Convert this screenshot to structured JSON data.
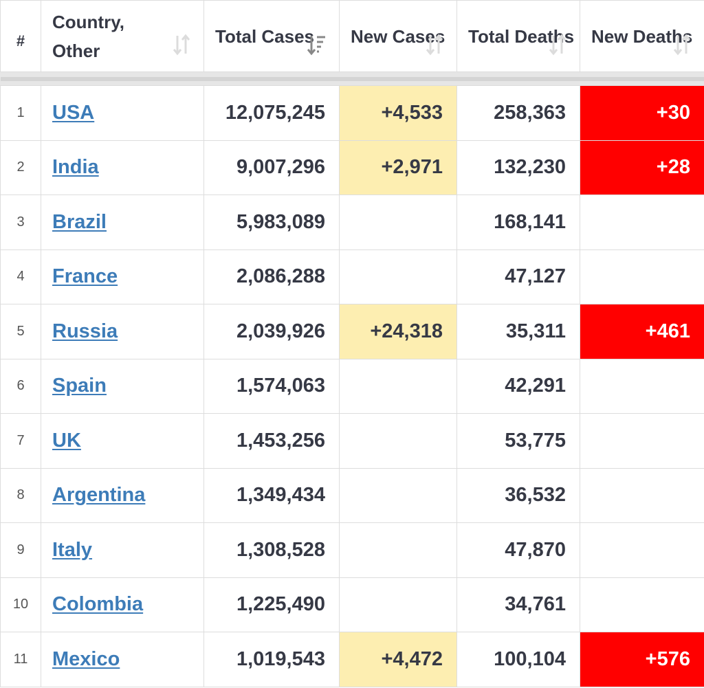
{
  "colors": {
    "new_cases_highlight": "#fdeeb1",
    "new_deaths_highlight": "#ff0000",
    "link": "#3d7cb8",
    "text": "#363945"
  },
  "header": {
    "rank": "#",
    "country": "Country, Other",
    "total_cases": "Total Cases",
    "new_cases": "New Cases",
    "total_deaths": "Total Deaths",
    "new_deaths": "New Deaths",
    "sort_icons": [
      "sort-both-icon",
      "sort-desc-icon",
      "sort-both-icon",
      "sort-both-icon",
      "sort-both-icon"
    ]
  },
  "rows": [
    {
      "rank": "1",
      "country": "USA",
      "total_cases": "12,075,245",
      "new_cases": "+4,533",
      "total_deaths": "258,363",
      "new_deaths": "+30"
    },
    {
      "rank": "2",
      "country": "India",
      "total_cases": "9,007,296",
      "new_cases": "+2,971",
      "total_deaths": "132,230",
      "new_deaths": "+28"
    },
    {
      "rank": "3",
      "country": "Brazil",
      "total_cases": "5,983,089",
      "new_cases": "",
      "total_deaths": "168,141",
      "new_deaths": ""
    },
    {
      "rank": "4",
      "country": "France",
      "total_cases": "2,086,288",
      "new_cases": "",
      "total_deaths": "47,127",
      "new_deaths": ""
    },
    {
      "rank": "5",
      "country": "Russia",
      "total_cases": "2,039,926",
      "new_cases": "+24,318",
      "total_deaths": "35,311",
      "new_deaths": "+461"
    },
    {
      "rank": "6",
      "country": "Spain",
      "total_cases": "1,574,063",
      "new_cases": "",
      "total_deaths": "42,291",
      "new_deaths": ""
    },
    {
      "rank": "7",
      "country": "UK",
      "total_cases": "1,453,256",
      "new_cases": "",
      "total_deaths": "53,775",
      "new_deaths": ""
    },
    {
      "rank": "8",
      "country": "Argentina",
      "total_cases": "1,349,434",
      "new_cases": "",
      "total_deaths": "36,532",
      "new_deaths": ""
    },
    {
      "rank": "9",
      "country": "Italy",
      "total_cases": "1,308,528",
      "new_cases": "",
      "total_deaths": "47,870",
      "new_deaths": ""
    },
    {
      "rank": "10",
      "country": "Colombia",
      "total_cases": "1,225,490",
      "new_cases": "",
      "total_deaths": "34,761",
      "new_deaths": ""
    },
    {
      "rank": "11",
      "country": "Mexico",
      "total_cases": "1,019,543",
      "new_cases": "+4,472",
      "total_deaths": "100,104",
      "new_deaths": "+576"
    }
  ]
}
